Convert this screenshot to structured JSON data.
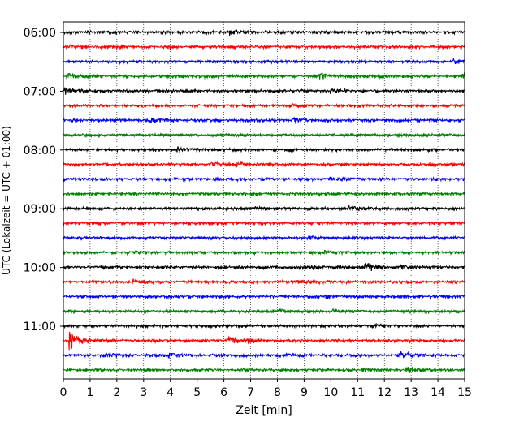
{
  "chart_data": {
    "type": "line",
    "title": "",
    "xlabel": "Zeit  [min]",
    "ylabel": "UTC (Lokalzeit = UTC + 01:00)",
    "xlim": [
      0,
      15
    ],
    "x_ticks": [
      0,
      1,
      2,
      3,
      4,
      5,
      6,
      7,
      8,
      9,
      10,
      11,
      12,
      13,
      14,
      15
    ],
    "y_tick_labels": [
      "06:00",
      "07:00",
      "08:00",
      "09:00",
      "10:00",
      "11:00"
    ],
    "grid": "vertical-dotted",
    "trace_interval_minutes": 15,
    "trace_colors": [
      "#000000",
      "#ff0000",
      "#0000ff",
      "#008000"
    ],
    "series": [
      {
        "start": "06:00",
        "color": "#000000",
        "events": [
          {
            "t": 6.2,
            "amp": 1.6
          }
        ]
      },
      {
        "start": "06:15",
        "color": "#ff0000",
        "events": [
          {
            "t": 0.3,
            "amp": 1.3
          }
        ]
      },
      {
        "start": "06:30",
        "color": "#0000ff",
        "events": [
          {
            "t": 14.6,
            "amp": 1.6
          }
        ]
      },
      {
        "start": "06:45",
        "color": "#008000",
        "events": [
          {
            "t": 0.2,
            "amp": 2.0
          },
          {
            "t": 9.6,
            "amp": 2.2
          },
          {
            "t": 14.9,
            "amp": 2.0
          }
        ]
      },
      {
        "start": "07:00",
        "color": "#000000",
        "events": [
          {
            "t": 0.1,
            "amp": 2.4
          },
          {
            "t": 10.0,
            "amp": 1.6
          }
        ]
      },
      {
        "start": "07:15",
        "color": "#ff0000",
        "events": [
          {
            "t": 8.6,
            "amp": 1.3
          }
        ]
      },
      {
        "start": "07:30",
        "color": "#0000ff",
        "events": [
          {
            "t": 3.3,
            "amp": 2.0
          },
          {
            "t": 8.6,
            "amp": 2.2
          }
        ]
      },
      {
        "start": "07:45",
        "color": "#008000",
        "events": []
      },
      {
        "start": "08:00",
        "color": "#000000",
        "events": [
          {
            "t": 4.3,
            "amp": 2.0
          }
        ]
      },
      {
        "start": "08:15",
        "color": "#ff0000",
        "events": [
          {
            "t": 5.5,
            "amp": 1.4
          },
          {
            "t": 6.5,
            "amp": 1.5
          }
        ]
      },
      {
        "start": "08:30",
        "color": "#0000ff",
        "events": [
          {
            "t": 10.0,
            "amp": 1.4
          }
        ]
      },
      {
        "start": "08:45",
        "color": "#008000",
        "events": []
      },
      {
        "start": "09:00",
        "color": "#000000",
        "events": [
          {
            "t": 7.2,
            "amp": 1.6
          },
          {
            "t": 10.7,
            "amp": 1.8
          }
        ]
      },
      {
        "start": "09:15",
        "color": "#ff0000",
        "events": []
      },
      {
        "start": "09:30",
        "color": "#0000ff",
        "events": [
          {
            "t": 9.2,
            "amp": 1.2
          }
        ]
      },
      {
        "start": "09:45",
        "color": "#008000",
        "events": [
          {
            "t": 2.7,
            "amp": 1.2
          },
          {
            "t": 9.8,
            "amp": 1.2
          }
        ]
      },
      {
        "start": "10:00",
        "color": "#000000",
        "events": [
          {
            "t": 9.3,
            "amp": 1.7
          },
          {
            "t": 11.3,
            "amp": 3.6
          },
          {
            "t": 12.6,
            "amp": 1.4
          }
        ]
      },
      {
        "start": "10:15",
        "color": "#ff0000",
        "events": [
          {
            "t": 2.6,
            "amp": 2.2
          },
          {
            "t": 8.7,
            "amp": 1.4
          }
        ]
      },
      {
        "start": "10:30",
        "color": "#0000ff",
        "events": [
          {
            "t": 9.8,
            "amp": 1.3
          }
        ]
      },
      {
        "start": "10:45",
        "color": "#008000",
        "events": [
          {
            "t": 8.1,
            "amp": 1.3
          },
          {
            "t": 10.1,
            "amp": 1.3
          }
        ]
      },
      {
        "start": "11:00",
        "color": "#000000",
        "events": [
          {
            "t": 11.7,
            "amp": 1.3
          }
        ]
      },
      {
        "start": "11:15",
        "color": "#ff0000",
        "events": [
          {
            "t": 0.25,
            "amp": 7.5
          },
          {
            "t": 6.2,
            "amp": 3.2
          },
          {
            "t": 6.9,
            "amp": 2.4
          }
        ]
      },
      {
        "start": "11:30",
        "color": "#0000ff",
        "events": [
          {
            "t": 1.6,
            "amp": 2.2
          },
          {
            "t": 4.0,
            "amp": 1.6
          },
          {
            "t": 8.3,
            "amp": 1.4
          },
          {
            "t": 12.6,
            "amp": 3.0
          }
        ]
      },
      {
        "start": "11:45",
        "color": "#008000",
        "events": [
          {
            "t": 12.8,
            "amp": 2.4
          },
          {
            "t": 11.2,
            "amp": 1.4
          }
        ]
      }
    ]
  }
}
